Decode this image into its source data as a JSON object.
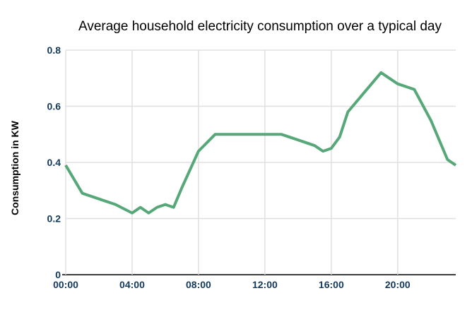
{
  "chart_data": {
    "type": "line",
    "title": "Average household electricity consumption over a typical day",
    "xlabel": "",
    "ylabel": "Consumption in KW",
    "x_tick_labels": [
      "00:00",
      "04:00",
      "08:00",
      "12:00",
      "16:00",
      "20:00"
    ],
    "x_tick_hours": [
      0,
      4,
      8,
      12,
      16,
      20
    ],
    "y_ticks": [
      0,
      0.2,
      0.4,
      0.6,
      0.8
    ],
    "y_tick_labels": [
      "0",
      "0.2",
      "0.4",
      "0.6",
      "0.8"
    ],
    "ylim": [
      0,
      0.8
    ],
    "xlim_hours": [
      0,
      23.5
    ],
    "grid": true,
    "legend_position": "none",
    "series": [
      {
        "points": [
          {
            "time": "00:00",
            "hour": 0,
            "kw": 0.39
          },
          {
            "time": "01:00",
            "hour": 1,
            "kw": 0.29
          },
          {
            "time": "02:00",
            "hour": 2,
            "kw": 0.27
          },
          {
            "time": "03:00",
            "hour": 3,
            "kw": 0.25
          },
          {
            "time": "04:00",
            "hour": 4,
            "kw": 0.22
          },
          {
            "time": "04:30",
            "hour": 4.5,
            "kw": 0.24
          },
          {
            "time": "05:00",
            "hour": 5,
            "kw": 0.22
          },
          {
            "time": "05:30",
            "hour": 5.5,
            "kw": 0.24
          },
          {
            "time": "06:00",
            "hour": 6,
            "kw": 0.25
          },
          {
            "time": "06:30",
            "hour": 6.5,
            "kw": 0.24
          },
          {
            "time": "07:00",
            "hour": 7,
            "kw": 0.31
          },
          {
            "time": "08:00",
            "hour": 8,
            "kw": 0.44
          },
          {
            "time": "09:00",
            "hour": 9,
            "kw": 0.5
          },
          {
            "time": "10:00",
            "hour": 10,
            "kw": 0.5
          },
          {
            "time": "11:00",
            "hour": 11,
            "kw": 0.5
          },
          {
            "time": "12:00",
            "hour": 12,
            "kw": 0.5
          },
          {
            "time": "13:00",
            "hour": 13,
            "kw": 0.5
          },
          {
            "time": "14:00",
            "hour": 14,
            "kw": 0.48
          },
          {
            "time": "15:00",
            "hour": 15,
            "kw": 0.46
          },
          {
            "time": "15:30",
            "hour": 15.5,
            "kw": 0.44
          },
          {
            "time": "16:00",
            "hour": 16,
            "kw": 0.45
          },
          {
            "time": "16:30",
            "hour": 16.5,
            "kw": 0.49
          },
          {
            "time": "17:00",
            "hour": 17,
            "kw": 0.58
          },
          {
            "time": "18:00",
            "hour": 18,
            "kw": 0.65
          },
          {
            "time": "19:00",
            "hour": 19,
            "kw": 0.72
          },
          {
            "time": "19:30",
            "hour": 19.5,
            "kw": 0.7
          },
          {
            "time": "20:00",
            "hour": 20,
            "kw": 0.68
          },
          {
            "time": "21:00",
            "hour": 21,
            "kw": 0.66
          },
          {
            "time": "22:00",
            "hour": 22,
            "kw": 0.55
          },
          {
            "time": "23:00",
            "hour": 23,
            "kw": 0.41
          },
          {
            "time": "23:30",
            "hour": 23.5,
            "kw": 0.39
          }
        ]
      }
    ]
  },
  "colors": {
    "line": "#56a878",
    "axis_text": "#133a5c",
    "title_text": "#000000",
    "gridline": "#e0e0e0",
    "axis_line": "#3c3c3c",
    "background": "#ffffff"
  }
}
